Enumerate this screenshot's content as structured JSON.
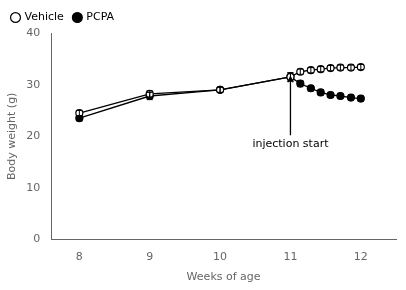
{
  "chart_data": {
    "type": "line",
    "xlabel": "Weeks of age",
    "ylabel": "Body weight (g)",
    "x": [
      8,
      9,
      10,
      11,
      11.14,
      11.29,
      11.43,
      11.57,
      11.71,
      11.86,
      12.0
    ],
    "series": [
      {
        "name": "Vehicle",
        "color": "black",
        "marker": "open_circle",
        "values": [
          24.5,
          28.2,
          29.0,
          31.5,
          32.5,
          32.8,
          33.0,
          33.2,
          33.3,
          33.3,
          33.4
        ],
        "errors": [
          0.5,
          0.6,
          0.5,
          0.8,
          0.5,
          0.5,
          0.5,
          0.5,
          0.5,
          0.5,
          0.5
        ]
      },
      {
        "name": "PCPA",
        "color": "black",
        "marker": "circle",
        "values": [
          23.5,
          27.8,
          29.0,
          31.5,
          30.2,
          29.3,
          28.5,
          28.0,
          27.8,
          27.5,
          27.3
        ],
        "errors": [
          0.5,
          0.7,
          0.5,
          0.8,
          0.6,
          0.5,
          0.5,
          0.5,
          0.5,
          0.5,
          0.5
        ]
      }
    ],
    "xlim": [
      7.6,
      12.5
    ],
    "ylim": [
      0,
      40
    ],
    "xticks": [
      8,
      9,
      10,
      11,
      12
    ],
    "yticks": [
      0,
      10,
      20,
      30,
      40
    ],
    "annotations": [
      {
        "text": "injection start",
        "x": 11.0,
        "y": 31.5,
        "text_x": 11.0,
        "text_y": 17.5
      }
    ],
    "grid": false,
    "legend": "upper left"
  }
}
